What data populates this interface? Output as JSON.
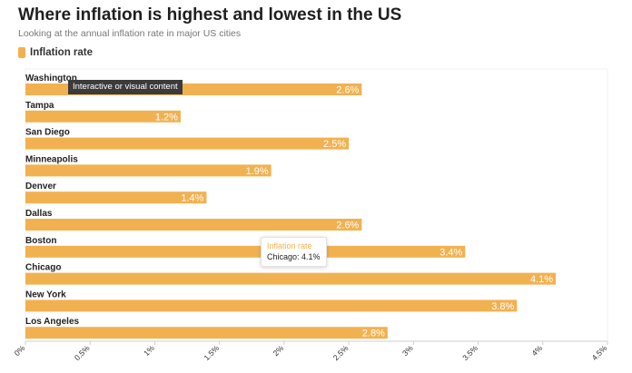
{
  "chart_data": {
    "type": "bar",
    "orientation": "horizontal",
    "title": "Where inflation is highest and lowest in the US",
    "subtitle": "Looking at the annual inflation rate in major US cities",
    "categories": [
      "Washington",
      "Tampa",
      "San Diego",
      "Minneapolis",
      "Denver",
      "Dallas",
      "Boston",
      "Chicago",
      "New York",
      "Los Angeles"
    ],
    "series": [
      {
        "name": "Inflation rate",
        "values": [
          2.6,
          1.2,
          2.5,
          1.9,
          1.4,
          2.6,
          3.4,
          4.1,
          3.8,
          2.8
        ]
      }
    ],
    "value_labels": [
      "2.6%",
      "1.2%",
      "2.5%",
      "1.9%",
      "1.4%",
      "2.6%",
      "3.4%",
      "4.1%",
      "3.8%",
      "2.8%"
    ],
    "xlim": [
      0,
      4.5
    ],
    "x_ticks": [
      0,
      0.5,
      1,
      1.5,
      2,
      2.5,
      3,
      3.5,
      4,
      4.5
    ],
    "x_tick_labels": [
      "0%",
      "0.5%",
      "1%",
      "1.5%",
      "2%",
      "2.5%",
      "3%",
      "3.5%",
      "4%",
      "4.5%"
    ],
    "color": "#f2b151",
    "legend": "top-left",
    "grid": false
  },
  "tooltip": {
    "title": "Inflation rate",
    "body": "Chicago: 4.1%"
  },
  "overlay_label": "Interactive or visual content"
}
